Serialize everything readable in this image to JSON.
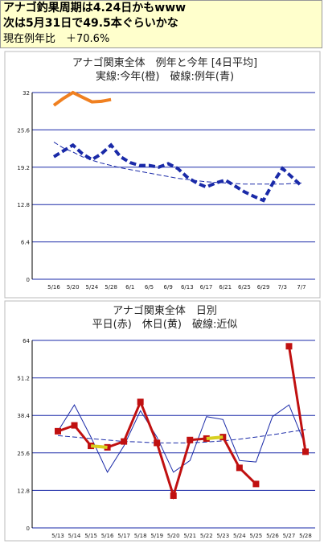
{
  "header": {
    "lines": [
      "アナゴ釣果周期は4.24日かもwww",
      "次は5月31日で49.5本ぐらいかな",
      "現在例年比　＋70.6%"
    ]
  },
  "chart_data": [
    {
      "type": "line",
      "title": "アナゴ関東全体　例年と今年 [4日平均]",
      "subtitle": "実線:今年(橙)　破線:例年(青)",
      "categories": [
        "5/16",
        null,
        "5/20",
        null,
        "5/24",
        null,
        "5/28",
        null,
        "6/1",
        null,
        "6/5",
        null,
        "6/9",
        null,
        "6/13",
        null,
        "6/17",
        null,
        "6/21",
        null,
        "6/25",
        null,
        "6/29",
        null,
        "7/3",
        null,
        "7/7"
      ],
      "ylim": [
        0,
        32
      ],
      "yticks": [
        0,
        6.4,
        12.8,
        19.2,
        25.6,
        32
      ],
      "grid": true,
      "series": [
        {
          "color": "#1a2aa8",
          "width": 1,
          "dash": true,
          "markers": false,
          "values": [
            23.5,
            22.5,
            21.8,
            21,
            20.4,
            19.9,
            19.5,
            19.1,
            18.8,
            18.5,
            18.2,
            17.9,
            17.6,
            17.3,
            17.1,
            16.9,
            16.7,
            16.6,
            16.5,
            16.4,
            16.3,
            16.3,
            16.3,
            16.3,
            16.3,
            16.4,
            16.5
          ]
        },
        {
          "color": "#1a2aa8",
          "width": 4,
          "dash": true,
          "markers": false,
          "values": [
            21,
            22,
            23,
            21.5,
            20.5,
            21.5,
            23,
            21,
            20,
            19.5,
            19.5,
            19.2,
            19.8,
            19,
            17.5,
            16.5,
            15.8,
            16.5,
            17,
            16,
            15,
            14.2,
            13.5,
            16.5,
            19,
            17.5,
            16
          ]
        },
        {
          "color": "#f08020",
          "width": 4,
          "dash": false,
          "markers": false,
          "values": [
            29.8,
            31,
            32,
            31.2,
            30.4,
            30.5,
            30.8,
            null,
            null,
            null,
            null,
            null,
            null,
            null,
            null,
            null,
            null,
            null,
            null,
            null,
            null,
            null,
            null,
            null,
            null,
            null,
            null
          ]
        }
      ]
    },
    {
      "type": "line",
      "title": "アナゴ関東全体　日別",
      "subtitle": "平日(赤)　休日(黄)　破線:近似",
      "categories": [
        "5/13",
        "5/14",
        "5/15",
        "5/16",
        "5/17",
        "5/18",
        "5/19",
        "5/20",
        "5/21",
        "5/22",
        "5/23",
        "5/24",
        "5/25",
        "5/26",
        "5/27",
        "5/28"
      ],
      "ylim": [
        0,
        64
      ],
      "yticks": [
        0,
        12.8,
        25.6,
        38.4,
        51.2,
        64
      ],
      "grid": true,
      "series": [
        {
          "color": "#1a2aa8",
          "width": 1,
          "dash": false,
          "markers": false,
          "values": [
            33,
            42,
            31,
            19,
            28,
            40,
            31,
            19,
            23,
            38,
            37,
            23,
            22.5,
            38,
            42,
            28
          ]
        },
        {
          "color": "#1a2aa8",
          "width": 1,
          "dash": true,
          "markers": false,
          "values": [
            31.5,
            31,
            30.5,
            30,
            29.5,
            29.3,
            29,
            29,
            29,
            29.3,
            29.7,
            30.3,
            31,
            31.8,
            32.7,
            33.6
          ]
        },
        {
          "color": "#c01010",
          "width": 3,
          "dash": false,
          "markers": true,
          "values": [
            33,
            35,
            28,
            27.5,
            29.5,
            43,
            29,
            11,
            30,
            30.5,
            31,
            20.5,
            15,
            null,
            62,
            26
          ]
        },
        {
          "color": "#d8d020",
          "width": 4,
          "dash": false,
          "markers": false,
          "values": [
            null,
            null,
            28,
            27.5,
            null,
            null,
            null,
            null,
            null,
            30.5,
            31,
            null,
            null,
            null,
            null,
            null
          ]
        }
      ]
    }
  ]
}
